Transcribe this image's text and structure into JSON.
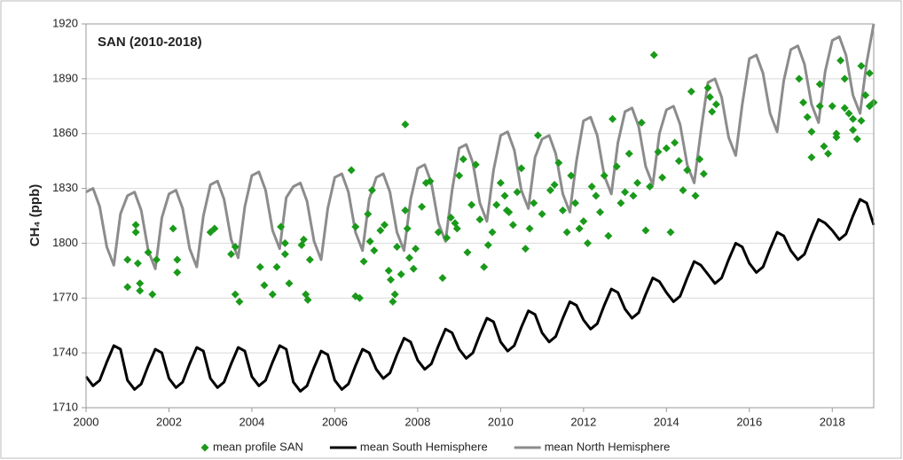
{
  "chart_data": {
    "type": "scatter",
    "title": "SAN (2010-2018)",
    "y_label": "CH₄ (ppb)",
    "xlim": [
      2000,
      2019
    ],
    "xticks": [
      2000,
      2002,
      2004,
      2006,
      2008,
      2010,
      2012,
      2014,
      2016,
      2018
    ],
    "ylim": [
      1710,
      1920
    ],
    "yticks": [
      1710,
      1740,
      1770,
      1800,
      1830,
      1860,
      1890,
      1920
    ],
    "grid": true,
    "legend": "bottom",
    "series": [
      {
        "name": "mean profile SAN",
        "type": "scatter",
        "color": "#1a9a1a",
        "x": [
          2001.0,
          2001.0,
          2001.2,
          2001.2,
          2001.25,
          2001.3,
          2001.3,
          2001.5,
          2001.6,
          2001.7,
          2002.1,
          2002.2,
          2002.2,
          2003.0,
          2003.1,
          2003.5,
          2003.6,
          2003.6,
          2003.7,
          2004.2,
          2004.3,
          2004.5,
          2004.6,
          2004.7,
          2004.8,
          2004.8,
          2004.9,
          2005.2,
          2005.25,
          2005.3,
          2005.35,
          2005.4,
          2006.4,
          2006.5,
          2006.5,
          2006.6,
          2006.7,
          2006.8,
          2006.9,
          2006.85,
          2006.95,
          2007.1,
          2007.2,
          2007.3,
          2007.35,
          2007.4,
          2007.45,
          2007.5,
          2007.6,
          2007.7,
          2007.7,
          2007.75,
          2007.8,
          2007.9,
          2007.95,
          2008.1,
          2008.2,
          2008.3,
          2008.5,
          2008.6,
          2008.7,
          2008.8,
          2008.9,
          2008.95,
          2009.0,
          2009.1,
          2009.2,
          2009.3,
          2009.4,
          2009.5,
          2009.6,
          2009.7,
          2009.8,
          2009.9,
          2010.0,
          2010.1,
          2010.15,
          2010.2,
          2010.3,
          2010.4,
          2010.5,
          2010.6,
          2010.7,
          2010.8,
          2010.9,
          2011.0,
          2011.2,
          2011.3,
          2011.4,
          2011.5,
          2011.6,
          2011.7,
          2011.8,
          2011.9,
          2012.0,
          2012.1,
          2012.2,
          2012.3,
          2012.4,
          2012.5,
          2012.6,
          2012.7,
          2012.8,
          2012.9,
          2013.0,
          2013.1,
          2013.2,
          2013.3,
          2013.4,
          2013.5,
          2013.6,
          2013.7,
          2013.8,
          2013.9,
          2014.0,
          2014.1,
          2014.2,
          2014.3,
          2014.4,
          2014.5,
          2014.6,
          2014.7,
          2014.8,
          2014.9,
          2015.0,
          2015.05,
          2015.1,
          2015.2,
          2017.2,
          2017.3,
          2017.4,
          2017.5,
          2017.5,
          2017.7,
          2017.7,
          2017.8,
          2017.9,
          2018.0,
          2018.1,
          2018.1,
          2018.2,
          2018.3,
          2018.3,
          2018.4,
          2018.5,
          2018.5,
          2018.6,
          2018.7,
          2018.7,
          2018.8,
          2018.9,
          2018.9,
          2019.0
        ],
        "values": [
          1791,
          1776,
          1810,
          1806,
          1789,
          1778,
          1774,
          1795,
          1772,
          1791,
          1808,
          1791,
          1784,
          1806,
          1808,
          1794,
          1798,
          1772,
          1768,
          1787,
          1777,
          1772,
          1787,
          1809,
          1800,
          1794,
          1778,
          1799,
          1802,
          1772,
          1769,
          1791,
          1840,
          1809,
          1771,
          1770,
          1790,
          1816,
          1829,
          1801,
          1796,
          1807,
          1810,
          1785,
          1780,
          1768,
          1772,
          1798,
          1783,
          1865,
          1818,
          1808,
          1792,
          1786,
          1797,
          1820,
          1833,
          1834,
          1806,
          1781,
          1803,
          1814,
          1811,
          1808,
          1837,
          1846,
          1795,
          1821,
          1843,
          1813,
          1787,
          1799,
          1806,
          1821,
          1833,
          1826,
          1818,
          1817,
          1810,
          1828,
          1841,
          1797,
          1808,
          1822,
          1859,
          1816,
          1829,
          1832,
          1844,
          1818,
          1806,
          1837,
          1822,
          1808,
          1812,
          1800,
          1831,
          1826,
          1817,
          1837,
          1804,
          1868,
          1842,
          1822,
          1828,
          1849,
          1826,
          1833,
          1866,
          1807,
          1831,
          1903,
          1850,
          1836,
          1852,
          1806,
          1855,
          1845,
          1829,
          1840,
          1883,
          1826,
          1846,
          1838,
          1885,
          1880,
          1872,
          1876,
          1890,
          1877,
          1869,
          1847,
          1861,
          1887,
          1875,
          1853,
          1849,
          1875,
          1860,
          1858,
          1900,
          1874,
          1890,
          1871,
          1868,
          1862,
          1857,
          1897,
          1867,
          1881,
          1875,
          1893,
          1877
        ]
      },
      {
        "name": "mean South Hemisphere",
        "type": "line",
        "color": "#000000",
        "x": [
          2000,
          2000.17,
          2000.33,
          2000.5,
          2000.67,
          2000.83,
          2001,
          2001.17,
          2001.33,
          2001.5,
          2001.67,
          2001.83,
          2002,
          2002.17,
          2002.33,
          2002.5,
          2002.67,
          2002.83,
          2003,
          2003.17,
          2003.33,
          2003.5,
          2003.67,
          2003.83,
          2004,
          2004.17,
          2004.33,
          2004.5,
          2004.67,
          2004.83,
          2005,
          2005.17,
          2005.33,
          2005.5,
          2005.67,
          2005.83,
          2006,
          2006.17,
          2006.33,
          2006.5,
          2006.67,
          2006.83,
          2007,
          2007.17,
          2007.33,
          2007.5,
          2007.67,
          2007.83,
          2008,
          2008.17,
          2008.33,
          2008.5,
          2008.67,
          2008.83,
          2009,
          2009.17,
          2009.33,
          2009.5,
          2009.67,
          2009.83,
          2010,
          2010.17,
          2010.33,
          2010.5,
          2010.67,
          2010.83,
          2011,
          2011.17,
          2011.33,
          2011.5,
          2011.67,
          2011.83,
          2012,
          2012.17,
          2012.33,
          2012.5,
          2012.67,
          2012.83,
          2013,
          2013.17,
          2013.33,
          2013.5,
          2013.67,
          2013.83,
          2014,
          2014.17,
          2014.33,
          2014.5,
          2014.67,
          2014.83,
          2015,
          2015.17,
          2015.33,
          2015.5,
          2015.67,
          2015.83,
          2016,
          2016.17,
          2016.33,
          2016.5,
          2016.67,
          2016.83,
          2017,
          2017.17,
          2017.33,
          2017.5,
          2017.67,
          2017.83,
          2018,
          2018.17,
          2018.33,
          2018.5,
          2018.67,
          2018.83,
          2019
        ],
        "values": [
          1727,
          1722,
          1725,
          1735,
          1744,
          1742,
          1725,
          1720,
          1723,
          1733,
          1742,
          1740,
          1726,
          1721,
          1724,
          1734,
          1743,
          1741,
          1726,
          1721,
          1724,
          1734,
          1743,
          1741,
          1727,
          1722,
          1725,
          1735,
          1744,
          1742,
          1724,
          1719,
          1722,
          1732,
          1741,
          1739,
          1725,
          1720,
          1723,
          1733,
          1742,
          1740,
          1731,
          1726,
          1729,
          1739,
          1748,
          1746,
          1736,
          1731,
          1734,
          1744,
          1753,
          1751,
          1742,
          1737,
          1740,
          1750,
          1759,
          1757,
          1746,
          1741,
          1744,
          1754,
          1763,
          1761,
          1751,
          1746,
          1749,
          1759,
          1768,
          1766,
          1758,
          1753,
          1756,
          1766,
          1775,
          1773,
          1764,
          1759,
          1762,
          1772,
          1781,
          1779,
          1773,
          1768,
          1771,
          1781,
          1790,
          1788,
          1783,
          1778,
          1781,
          1791,
          1800,
          1798,
          1789,
          1784,
          1787,
          1797,
          1806,
          1804,
          1796,
          1791,
          1794,
          1804,
          1813,
          1811,
          1807,
          1802,
          1805,
          1815,
          1824,
          1822,
          1810
        ]
      },
      {
        "name": "mean North Hemisphere",
        "type": "line",
        "color": "#8c8c8c",
        "x": [
          2000,
          2000.17,
          2000.33,
          2000.5,
          2000.67,
          2000.83,
          2001,
          2001.17,
          2001.33,
          2001.5,
          2001.67,
          2001.83,
          2002,
          2002.17,
          2002.33,
          2002.5,
          2002.67,
          2002.83,
          2003,
          2003.17,
          2003.33,
          2003.5,
          2003.67,
          2003.83,
          2004,
          2004.17,
          2004.33,
          2004.5,
          2004.67,
          2004.83,
          2005,
          2005.17,
          2005.33,
          2005.5,
          2005.67,
          2005.83,
          2006,
          2006.17,
          2006.33,
          2006.5,
          2006.67,
          2006.83,
          2007,
          2007.17,
          2007.33,
          2007.5,
          2007.67,
          2007.83,
          2008,
          2008.17,
          2008.33,
          2008.5,
          2008.67,
          2008.83,
          2009,
          2009.17,
          2009.33,
          2009.5,
          2009.67,
          2009.83,
          2010,
          2010.17,
          2010.33,
          2010.5,
          2010.67,
          2010.83,
          2011,
          2011.17,
          2011.33,
          2011.5,
          2011.67,
          2011.83,
          2012,
          2012.17,
          2012.33,
          2012.5,
          2012.67,
          2012.83,
          2013,
          2013.17,
          2013.33,
          2013.5,
          2013.67,
          2013.83,
          2014,
          2014.17,
          2014.33,
          2014.5,
          2014.67,
          2014.83,
          2015,
          2015.17,
          2015.33,
          2015.5,
          2015.67,
          2015.83,
          2016,
          2016.17,
          2016.33,
          2016.5,
          2016.67,
          2016.83,
          2017,
          2017.17,
          2017.33,
          2017.5,
          2017.67,
          2017.83,
          2018,
          2018.17,
          2018.33,
          2018.5,
          2018.67,
          2018.83,
          2019
        ],
        "values": [
          1828,
          1830,
          1820,
          1798,
          1788,
          1816,
          1826,
          1828,
          1818,
          1796,
          1786,
          1814,
          1827,
          1829,
          1819,
          1797,
          1787,
          1815,
          1832,
          1834,
          1824,
          1802,
          1792,
          1820,
          1837,
          1839,
          1829,
          1807,
          1797,
          1825,
          1831,
          1833,
          1823,
          1801,
          1791,
          1819,
          1836,
          1838,
          1828,
          1806,
          1796,
          1824,
          1836,
          1838,
          1828,
          1806,
          1796,
          1824,
          1841,
          1843,
          1833,
          1811,
          1801,
          1829,
          1852,
          1854,
          1844,
          1822,
          1812,
          1840,
          1859,
          1861,
          1851,
          1829,
          1819,
          1847,
          1857,
          1859,
          1849,
          1827,
          1817,
          1845,
          1867,
          1869,
          1859,
          1837,
          1827,
          1855,
          1872,
          1874,
          1864,
          1842,
          1832,
          1860,
          1873,
          1875,
          1865,
          1843,
          1833,
          1861,
          1888,
          1890,
          1880,
          1858,
          1848,
          1876,
          1901,
          1903,
          1893,
          1871,
          1861,
          1889,
          1906,
          1908,
          1898,
          1876,
          1866,
          1894,
          1911,
          1913,
          1903,
          1881,
          1871,
          1899,
          1920
        ]
      }
    ]
  }
}
